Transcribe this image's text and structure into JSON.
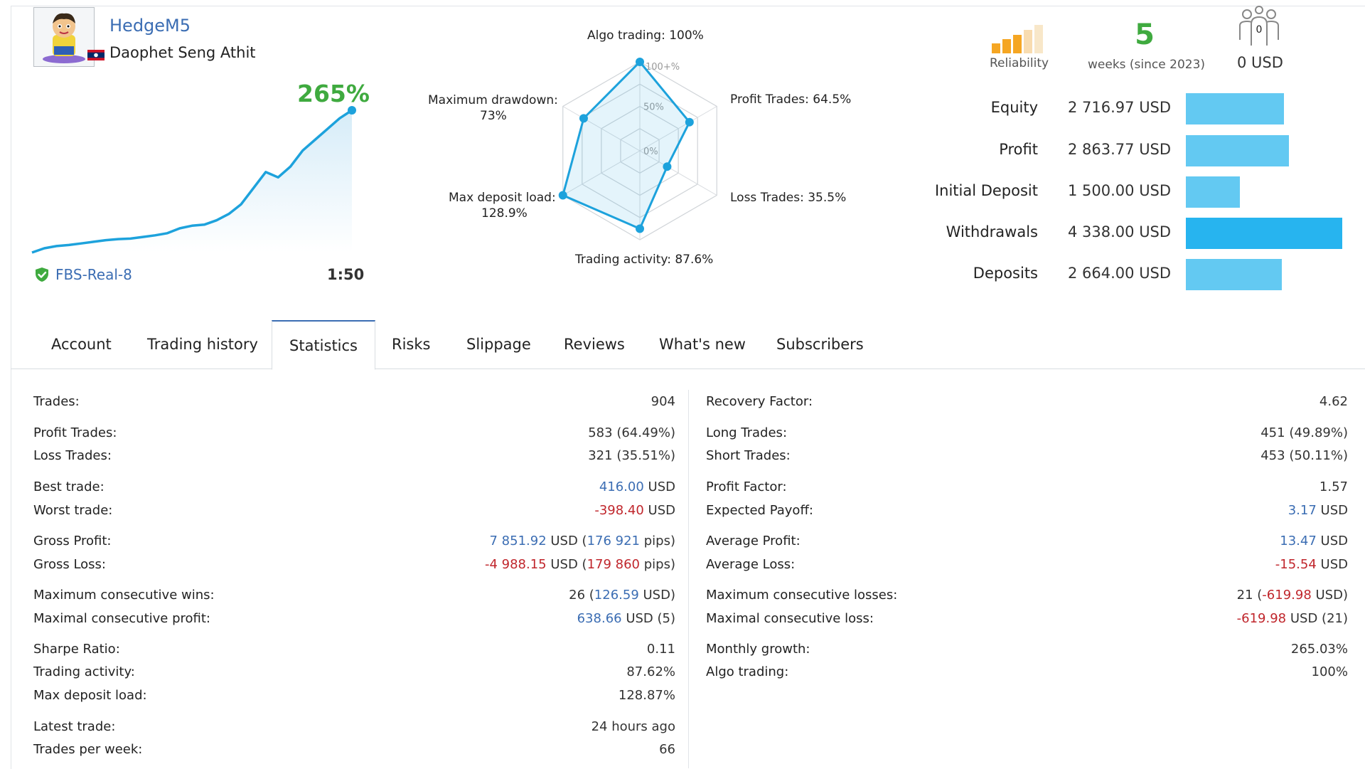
{
  "profile": {
    "username": "HedgeM5",
    "full_name": "Daophet Seng Athit",
    "growth": "265%",
    "server": "FBS-Real-8",
    "leverage": "1:50"
  },
  "growth_chart": {
    "type": "area",
    "values": [
      0,
      8,
      12,
      14,
      17,
      20,
      23,
      25,
      26,
      29,
      32,
      36,
      45,
      50,
      52,
      60,
      72,
      90,
      120,
      150,
      140,
      160,
      190,
      210,
      230,
      250,
      265
    ]
  },
  "radar": {
    "type": "radar",
    "labels": {
      "algo": "Algo trading: 100%",
      "profit": "Profit Trades: 64.5%",
      "loss": "Loss Trades: 35.5%",
      "activity": "Trading activity: 87.6%",
      "deposit_load_1": "Max deposit load:",
      "deposit_load_2": "128.9%",
      "drawdown_1": "Maximum drawdown:",
      "drawdown_2": "73%"
    },
    "ticks": [
      "100+%",
      "50%",
      "0%"
    ],
    "values": [
      100,
      64.5,
      35.5,
      87.6,
      128.9,
      73
    ]
  },
  "reliability": {
    "label": "Reliability"
  },
  "weeks": {
    "value": "5",
    "label": "weeks (since 2023)"
  },
  "subscribers": {
    "count": "0",
    "label": "0 USD"
  },
  "metrics": [
    {
      "label": "Equity",
      "value": "2 716.97 USD",
      "ratio": 0.626
    },
    {
      "label": "Profit",
      "value": "2 863.77 USD",
      "ratio": 0.66
    },
    {
      "label": "Initial Deposit",
      "value": "1 500.00 USD",
      "ratio": 0.346
    },
    {
      "label": "Withdrawals",
      "value": "4 338.00 USD",
      "ratio": 1.0
    },
    {
      "label": "Deposits",
      "value": "2 664.00 USD",
      "ratio": 0.614
    }
  ],
  "tabs": [
    "Account",
    "Trading history",
    "Statistics",
    "Risks",
    "Slippage",
    "Reviews",
    "What's new",
    "Subscribers"
  ],
  "stats_left": {
    "trades": {
      "k": "Trades:",
      "v": "904"
    },
    "profit_trades": {
      "k": "Profit Trades:",
      "v": "583 (64.49%)"
    },
    "loss_trades": {
      "k": "Loss Trades:",
      "v": "321 (35.51%)"
    },
    "best_trade": {
      "k": "Best trade:",
      "v1": "416.00",
      "v2": " USD"
    },
    "worst_trade": {
      "k": "Worst trade:",
      "v1": "-398.40",
      "v2": " USD"
    },
    "gross_profit": {
      "k": "Gross Profit:",
      "v1": "7 851.92",
      "v2": " USD (",
      "v3": "176 921",
      "v4": " pips)"
    },
    "gross_loss": {
      "k": "Gross Loss:",
      "v1": "-4 988.15",
      "v2": " USD (",
      "v3": "179 860",
      "v4": " pips)"
    },
    "max_cons_wins": {
      "k": "Maximum consecutive wins:",
      "v1": "26 (",
      "v2": "126.59",
      "v3": " USD)"
    },
    "max_cons_profit": {
      "k": "Maximal consecutive profit:",
      "v1": "638.66",
      "v2": " USD (5)"
    },
    "sharpe": {
      "k": "Sharpe Ratio:",
      "v": "0.11"
    },
    "activity": {
      "k": "Trading activity:",
      "v": "87.62%"
    },
    "deposit_load": {
      "k": "Max deposit load:",
      "v": "128.87%"
    },
    "latest_trade": {
      "k": "Latest trade:",
      "v": "24 hours ago"
    },
    "per_week": {
      "k": "Trades per week:",
      "v": "66"
    }
  },
  "stats_right": {
    "recovery": {
      "k": "Recovery Factor:",
      "v": "4.62"
    },
    "long": {
      "k": "Long Trades:",
      "v": "451 (49.89%)"
    },
    "short": {
      "k": "Short Trades:",
      "v": "453 (50.11%)"
    },
    "profit_factor": {
      "k": "Profit Factor:",
      "v": "1.57"
    },
    "expected_payoff": {
      "k": "Expected Payoff:",
      "v1": "3.17",
      "v2": " USD"
    },
    "avg_profit": {
      "k": "Average Profit:",
      "v1": "13.47",
      "v2": " USD"
    },
    "avg_loss": {
      "k": "Average Loss:",
      "v1": "-15.54",
      "v2": " USD"
    },
    "max_cons_losses": {
      "k": "Maximum consecutive losses:",
      "v1": "21 (",
      "v2": "-619.98",
      "v3": " USD)"
    },
    "max_cons_loss": {
      "k": "Maximal consecutive loss:",
      "v1": "-619.98",
      "v2": " USD (21)"
    },
    "monthly_growth": {
      "k": "Monthly growth:",
      "v": "265.03%"
    },
    "algo": {
      "k": "Algo trading:",
      "v": "100%"
    }
  },
  "colors": {
    "accent": "#3b6db3",
    "green": "#3faa3f",
    "red": "#c0262c",
    "bar": "#63c9f2",
    "bar_dark": "#27b4ef",
    "chart": "#1da2dc"
  },
  "icons": [
    "avatar",
    "laos-flag-icon",
    "shield-check-icon",
    "reliability-bars-icon",
    "subscribers-icon"
  ]
}
